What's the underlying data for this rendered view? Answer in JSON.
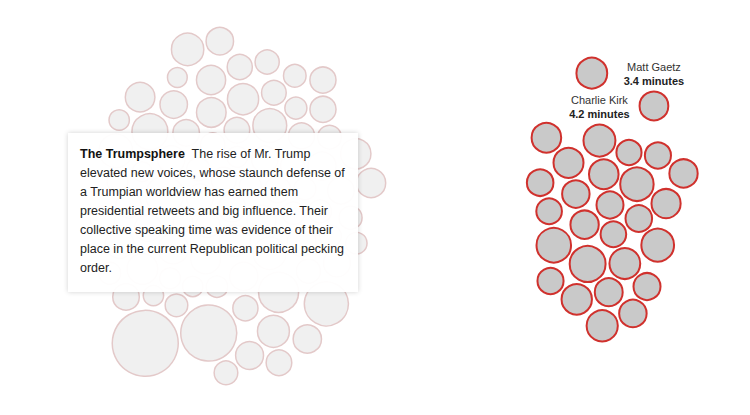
{
  "chart_data": {
    "type": "bubble",
    "title": "The Trumpsphere",
    "annotation": "The rise of Mr. Trump elevated new voices, whose staunch defense of a Trumpian worldview has earned them presidential retweets and big influence. Their collective speaking time was evidence of their place in the current Republican political pecking order.",
    "series": [
      {
        "color": "#e3c9c9",
        "values": [
          3.2,
          2.6,
          4.1,
          2.0,
          3.5,
          2.4,
          3.0,
          1.8,
          3.7,
          2.8,
          2.2,
          4.4,
          2.9,
          1.6,
          3.3,
          2.5,
          5.9,
          2.1,
          3.8,
          2.7,
          1.9,
          3.1,
          4.7,
          2.3,
          3.4,
          2.0,
          2.9,
          6.6,
          1.7,
          3.6,
          2.6,
          3.0,
          2.2,
          4.0,
          1.8,
          12.9,
          2.8,
          3.3,
          2.4,
          1.6,
          3.9,
          2.1,
          5.3,
          2.7,
          3.1,
          1.9,
          3.5,
          2.5,
          4.2,
          2.0,
          2.9,
          8.0,
          1.7,
          3.4,
          2.3,
          3.0,
          2.6,
          1.8,
          4.7,
          2.2,
          3.2,
          2.8,
          17.9,
          1.6,
          3.6,
          2.4,
          2.1,
          3.8,
          2.9,
          1.9,
          3.3,
          2.5,
          4.3,
          2.0,
          2.7,
          3.1,
          1.7,
          3.5,
          2.3,
          2.8
        ],
        "labels": [
          null,
          null,
          null,
          null,
          null,
          null,
          null,
          null,
          null,
          null,
          null,
          null,
          null,
          null,
          null,
          null,
          null,
          null,
          null,
          null,
          null,
          null,
          null,
          null,
          null,
          null,
          null,
          null,
          null,
          null,
          null,
          null,
          null,
          null,
          null,
          null,
          null,
          null,
          null,
          null,
          null,
          null,
          null,
          null,
          null,
          null,
          null,
          null,
          null,
          null,
          null,
          null,
          null,
          null,
          null,
          null,
          null,
          null,
          null,
          null,
          null,
          null,
          null,
          null,
          null,
          null,
          null,
          null,
          null,
          null,
          null,
          null,
          null,
          null,
          null,
          null,
          null,
          null,
          null,
          null
        ],
        "value_labels": [
          null,
          null,
          null,
          null,
          null,
          null,
          null,
          null,
          null,
          null,
          null,
          null,
          null,
          null,
          null,
          null,
          null,
          null,
          null,
          null,
          null,
          null,
          null,
          null,
          null,
          null,
          null,
          null,
          null,
          null,
          null,
          null,
          null,
          null,
          null,
          null,
          null,
          null,
          null,
          null,
          null,
          null,
          null,
          null,
          null,
          null,
          null,
          null,
          null,
          null,
          null,
          null,
          null,
          null,
          null,
          null,
          null,
          null,
          null,
          null,
          null,
          null,
          null,
          null,
          null,
          null,
          null,
          null,
          null,
          null,
          null,
          null,
          null,
          null,
          null,
          null,
          null,
          null,
          null,
          null
        ]
      },
      {
        "color": "#d0312d",
        "values": [
          3.0,
          2.7,
          3.6,
          4.6,
          3.3,
          4.2,
          2.9,
          3.9,
          5.3,
          3.1,
          2.6,
          3.7,
          4.4,
          3.2,
          2.8,
          3.5,
          4.9,
          3.0,
          2.7,
          3.8,
          3.4,
          3.1,
          4.0,
          2.9,
          3.6,
          3.3,
          2.8,
          3.9
        ],
        "labels": [
          null,
          null,
          null,
          null,
          null,
          "Charlie Kirk",
          null,
          null,
          null,
          null,
          null,
          null,
          null,
          null,
          null,
          null,
          null,
          null,
          null,
          null,
          "Matt Gaetz",
          null,
          null,
          null,
          null,
          null,
          null,
          null
        ],
        "value_labels": [
          null,
          null,
          null,
          null,
          null,
          "4.2 minutes",
          null,
          null,
          null,
          null,
          null,
          null,
          null,
          null,
          null,
          null,
          null,
          null,
          null,
          null,
          "3.4 minutes",
          null,
          null,
          null,
          null,
          null,
          null,
          null
        ]
      }
    ]
  }
}
